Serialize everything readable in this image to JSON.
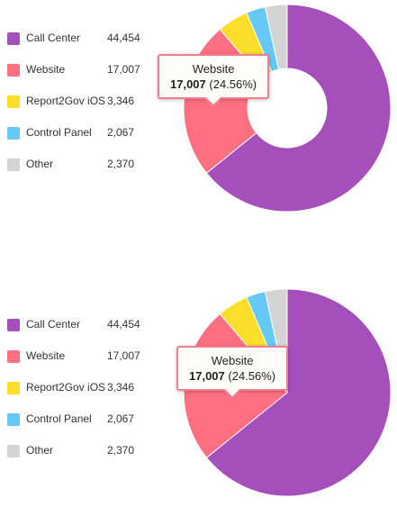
{
  "chart_data": [
    {
      "type": "pie",
      "variant": "donut",
      "categories": [
        "Call Center",
        "Website",
        "Report2Gov iOS",
        "Control Panel",
        "Other"
      ],
      "values": [
        44454,
        17007,
        3346,
        2067,
        2370
      ],
      "value_labels": [
        "44,454",
        "17,007",
        "3,346",
        "2,067",
        "2,370"
      ],
      "colors": [
        "#a44fba",
        "#ff6f82",
        "#fade2a",
        "#66c9f5",
        "#d4d4d4"
      ],
      "legend_position": "left",
      "tooltip": {
        "name": "Website",
        "value": "17,007",
        "percent": "(24.56%)"
      }
    },
    {
      "type": "pie",
      "variant": "pie",
      "categories": [
        "Call Center",
        "Website",
        "Report2Gov iOS",
        "Control Panel",
        "Other"
      ],
      "values": [
        44454,
        17007,
        3346,
        2067,
        2370
      ],
      "value_labels": [
        "44,454",
        "17,007",
        "3,346",
        "2,067",
        "2,370"
      ],
      "colors": [
        "#a44fba",
        "#ff6f82",
        "#fade2a",
        "#66c9f5",
        "#d4d4d4"
      ],
      "legend_position": "left",
      "tooltip": {
        "name": "Website",
        "value": "17,007",
        "percent": "(24.56%)"
      }
    }
  ]
}
